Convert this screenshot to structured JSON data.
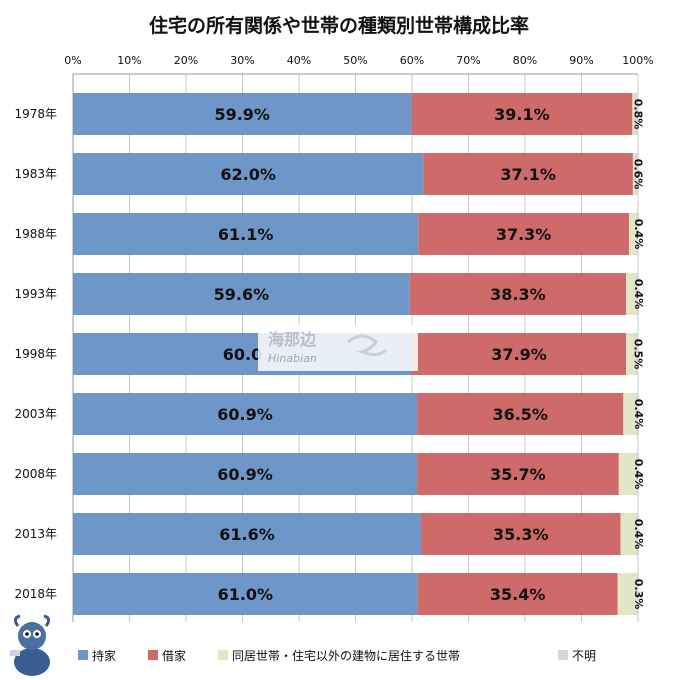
{
  "chart_data": {
    "type": "bar",
    "orientation": "horizontal",
    "stacked": true,
    "percent": true,
    "title": "住宅の所有関係や世帯の種類別世帯構成比率",
    "xlim": [
      0,
      100
    ],
    "x_ticks": [
      "0%",
      "10%",
      "20%",
      "30%",
      "40%",
      "50%",
      "60%",
      "70%",
      "80%",
      "90%",
      "100%"
    ],
    "categories": [
      "1978年",
      "1983年",
      "1988年",
      "1993年",
      "1998年",
      "2003年",
      "2008年",
      "2013年",
      "2018年"
    ],
    "series": [
      {
        "name": "持家",
        "color": "#6f96c8",
        "values": [
          59.9,
          62.0,
          61.1,
          59.6,
          60.0,
          60.9,
          60.9,
          61.6,
          61.0
        ],
        "labels": [
          "59.9%",
          "62.0%",
          "61.1%",
          "59.6%",
          "60.0",
          "60.9%",
          "60.9%",
          "61.6%",
          "61.0%"
        ]
      },
      {
        "name": "借家",
        "color": "#cf6a6a",
        "values": [
          39.1,
          37.1,
          37.3,
          38.3,
          37.9,
          36.5,
          35.7,
          35.3,
          35.4
        ],
        "labels": [
          "39.1%",
          "37.1%",
          "37.3%",
          "38.3%",
          "37.9%",
          "36.5%",
          "35.7%",
          "35.3%",
          "35.4%"
        ]
      },
      {
        "name": "同居世帯・住宅以外の建物に居住する世帯",
        "color": "#e2e6c4",
        "values": [
          0.3,
          0.3,
          1.2,
          1.7,
          1.6,
          2.2,
          3.0,
          2.7,
          3.3
        ],
        "labels": [
          "",
          "",
          "",
          "",
          "",
          "",
          "",
          "",
          ""
        ]
      },
      {
        "name": "不明",
        "color": "#d8d8d8",
        "values": [
          0.8,
          0.6,
          0.4,
          0.4,
          0.5,
          0.4,
          0.4,
          0.4,
          0.3
        ],
        "labels": [
          "0.8%",
          "0.6%",
          "0.4%",
          "0.4%",
          "0.5%",
          "0.4%",
          "0.4%",
          "0.4%",
          "0.3%"
        ]
      }
    ],
    "legend_position": "bottom",
    "grid": true
  },
  "watermark": {
    "text_cn": "海那边",
    "text_en": "Hinabian"
  }
}
